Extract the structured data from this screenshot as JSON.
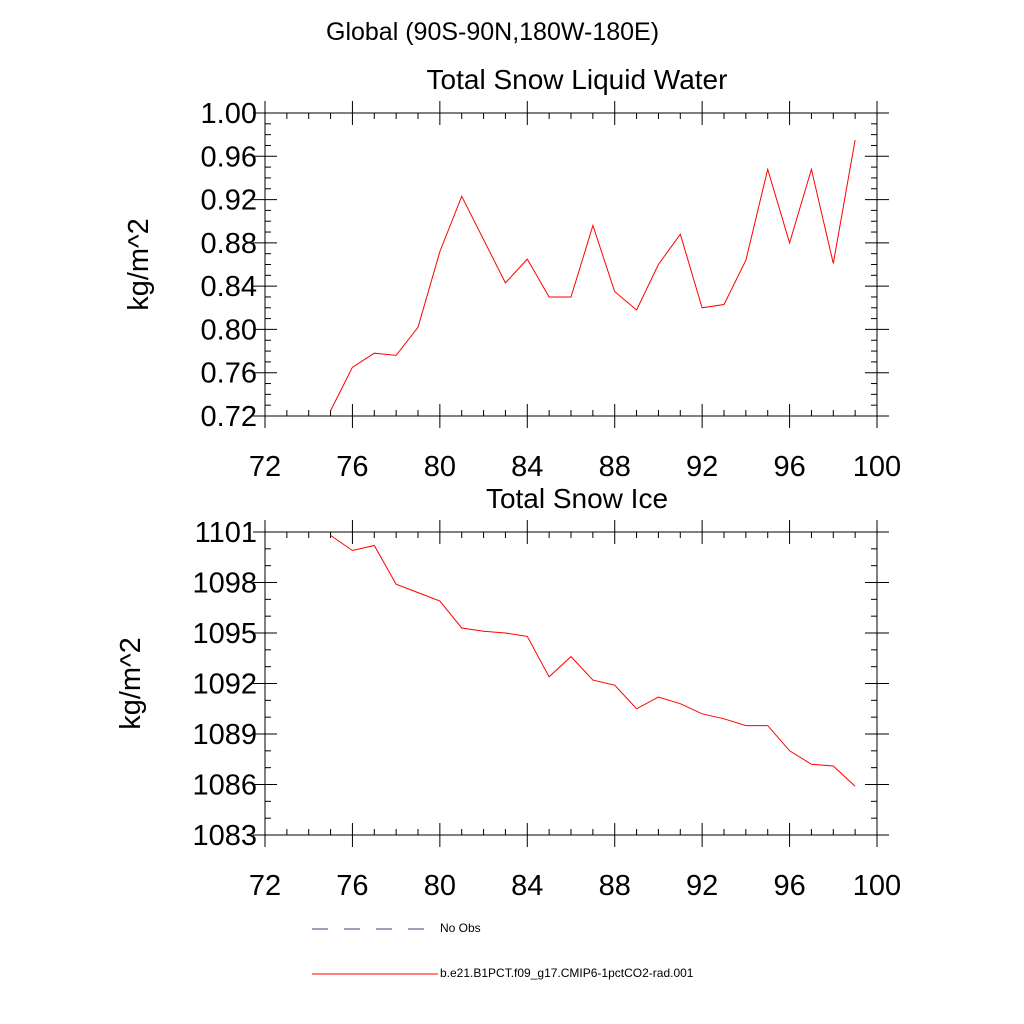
{
  "header": {
    "title": "Global (90S-90N,180W-180E)"
  },
  "colors": {
    "series": "#ff0000",
    "obs": "#3b3f7a",
    "axis": "#000000"
  },
  "chart_data": [
    {
      "type": "line",
      "title": "Total Snow Liquid Water",
      "ylabel": "kg/m^2",
      "xlabel": "",
      "xlim": [
        72,
        100
      ],
      "ylim": [
        0.72,
        1.0
      ],
      "xticks": [
        "72",
        "76",
        "80",
        "84",
        "88",
        "92",
        "96",
        "100"
      ],
      "xtick_values": [
        72,
        76,
        80,
        84,
        88,
        92,
        96,
        100
      ],
      "yticks": [
        "0.72",
        "0.76",
        "0.80",
        "0.84",
        "0.88",
        "0.92",
        "0.96",
        "1.00"
      ],
      "ytick_values": [
        0.72,
        0.76,
        0.8,
        0.84,
        0.88,
        0.92,
        0.96,
        1.0
      ],
      "series": [
        {
          "name": "b.e21.B1PCT.f09_g17.CMIP6-1pctCO2-rad.001",
          "x": [
            75,
            76,
            77,
            78,
            79,
            80,
            81,
            82,
            83,
            84,
            85,
            86,
            87,
            88,
            89,
            90,
            91,
            92,
            93,
            94,
            95,
            96,
            97,
            98,
            99
          ],
          "values": [
            0.725,
            0.765,
            0.778,
            0.776,
            0.802,
            0.872,
            0.923,
            0.883,
            0.843,
            0.865,
            0.83,
            0.83,
            0.896,
            0.835,
            0.818,
            0.86,
            0.888,
            0.82,
            0.823,
            0.864,
            0.948,
            0.88,
            0.948,
            0.861,
            0.975
          ]
        }
      ]
    },
    {
      "type": "line",
      "title": "Total Snow Ice",
      "ylabel": "kg/m^2",
      "xlabel": "",
      "xlim": [
        72,
        100
      ],
      "ylim": [
        1083,
        1101
      ],
      "xticks": [
        "72",
        "76",
        "80",
        "84",
        "88",
        "92",
        "96",
        "100"
      ],
      "xtick_values": [
        72,
        76,
        80,
        84,
        88,
        92,
        96,
        100
      ],
      "yticks": [
        "1083",
        "1086",
        "1089",
        "1092",
        "1095",
        "1098",
        "1101"
      ],
      "ytick_values": [
        1083,
        1086,
        1089,
        1092,
        1095,
        1098,
        1101
      ],
      "series": [
        {
          "name": "b.e21.B1PCT.f09_g17.CMIP6-1pctCO2-rad.001",
          "x": [
            75,
            76,
            77,
            78,
            79,
            80,
            81,
            82,
            83,
            84,
            85,
            86,
            87,
            88,
            89,
            90,
            91,
            92,
            93,
            94,
            95,
            96,
            97,
            98,
            99
          ],
          "values": [
            1100.8,
            1099.9,
            1100.2,
            1097.9,
            1097.4,
            1096.9,
            1095.3,
            1095.1,
            1095.0,
            1094.8,
            1092.4,
            1093.6,
            1092.2,
            1091.9,
            1090.5,
            1091.2,
            1090.8,
            1090.2,
            1089.9,
            1089.5,
            1089.5,
            1088.0,
            1087.2,
            1087.1,
            1085.9
          ]
        }
      ]
    }
  ],
  "legend": [
    {
      "label": "No Obs",
      "style": "dashed"
    },
    {
      "label": "b.e21.B1PCT.f09_g17.CMIP6-1pctCO2-rad.001",
      "style": "solid"
    }
  ]
}
